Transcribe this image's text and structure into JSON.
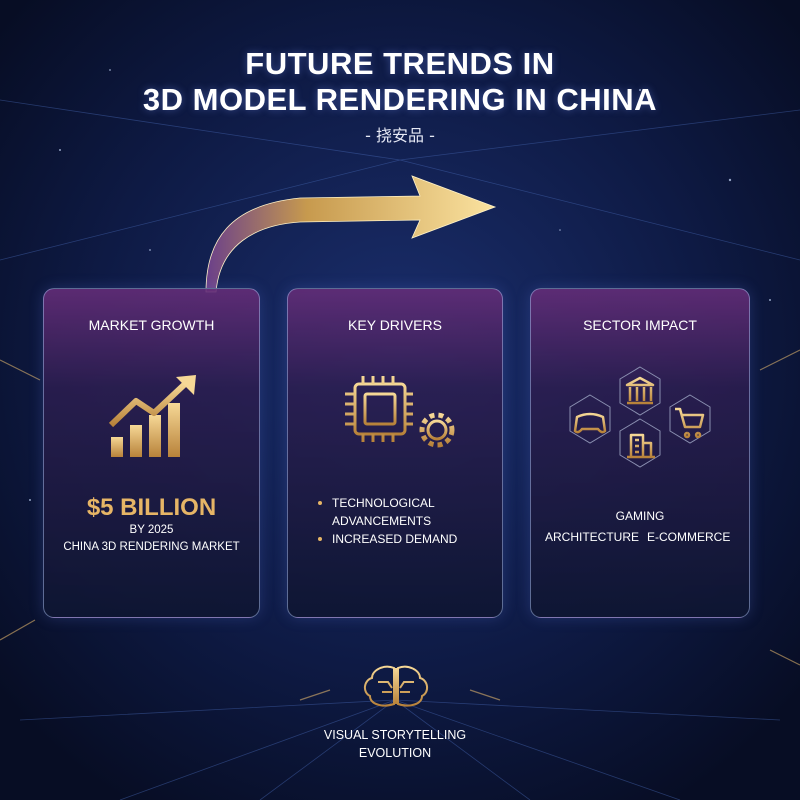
{
  "header": {
    "title_lines": [
      "FUTURE TRENDS IN",
      "3D MODEL RENDERING IN CHINA"
    ],
    "subtitle": "- 挠安品 -"
  },
  "cards": [
    {
      "title": "MARKET GROWTH",
      "headline": "$5 BILLION",
      "lines": [
        "BY 2025",
        "CHINA 3D RENDERING MARKET"
      ]
    },
    {
      "title": "KEY DRIVERS",
      "bullets": [
        "TECHNOLOGICAL ADVANCEMENTS",
        "INCREASED DEMAND"
      ]
    },
    {
      "title": "SECTOR IMPACT",
      "sectors": [
        "GAMING",
        "ARCHITECTURE",
        "E-COMMERCE"
      ]
    }
  ],
  "footer": {
    "text": "VISUAL STORYTELLING EVOLUTION"
  }
}
